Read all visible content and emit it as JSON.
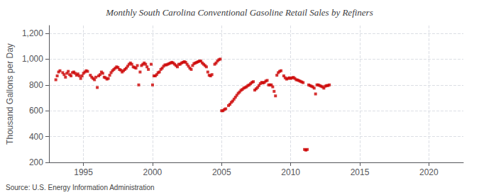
{
  "chart_data": {
    "type": "scatter",
    "title": "Monthly South Carolina Conventional Gasoline Retail Sales by Refiners",
    "ylabel": "Thousand Gallons per Day",
    "annotation": "Source: U.S. Energy Information Administration",
    "color": "#cc0000",
    "marker": "square",
    "grid": true,
    "xlim": [
      1992.5,
      2022.5
    ],
    "ylim": [
      200,
      1260
    ],
    "xticks": [
      1995,
      2000,
      2005,
      2010,
      2015,
      2020
    ],
    "yticks": [
      200,
      400,
      600,
      800,
      {
        "value": 1000,
        "label": "1,000"
      },
      {
        "value": 1200,
        "label": "1,200"
      }
    ],
    "x": [
      1993.0,
      1993.1,
      1993.2,
      1993.3,
      1993.5,
      1993.6,
      1993.7,
      1993.8,
      1993.9,
      1994.0,
      1994.1,
      1994.2,
      1994.3,
      1994.4,
      1994.5,
      1994.6,
      1994.7,
      1994.8,
      1994.9,
      1995.0,
      1995.1,
      1995.2,
      1995.3,
      1995.5,
      1995.6,
      1995.7,
      1995.8,
      1995.9,
      1996.0,
      1996.1,
      1996.2,
      1996.3,
      1996.4,
      1996.5,
      1996.6,
      1996.7,
      1996.8,
      1996.9,
      1997.0,
      1997.1,
      1997.2,
      1997.3,
      1997.4,
      1997.5,
      1997.6,
      1997.7,
      1997.8,
      1997.9,
      1998.0,
      1998.1,
      1998.2,
      1998.3,
      1998.4,
      1998.5,
      1998.6,
      1998.7,
      1998.8,
      1998.9,
      1999.0,
      1999.1,
      1999.2,
      1999.3,
      1999.4,
      1999.5,
      1999.6,
      1999.7,
      1999.9,
      2000.0,
      2000.1,
      2000.2,
      2000.3,
      2000.4,
      2000.5,
      2000.6,
      2000.7,
      2000.8,
      2000.9,
      2001.0,
      2001.1,
      2001.2,
      2001.3,
      2001.4,
      2001.5,
      2001.6,
      2001.7,
      2001.8,
      2001.9,
      2002.0,
      2002.1,
      2002.2,
      2002.3,
      2002.4,
      2002.5,
      2002.6,
      2002.7,
      2002.8,
      2002.9,
      2003.0,
      2003.1,
      2003.2,
      2003.3,
      2003.4,
      2003.5,
      2003.6,
      2003.7,
      2003.8,
      2003.9,
      2004.0,
      2004.1,
      2004.2,
      2004.3,
      2004.5,
      2004.6,
      2004.7,
      2004.8,
      2004.9,
      2005.0,
      2005.1,
      2005.2,
      2005.3,
      2005.5,
      2005.6,
      2005.7,
      2005.8,
      2005.9,
      2006.0,
      2006.1,
      2006.2,
      2006.3,
      2006.4,
      2006.5,
      2006.6,
      2006.7,
      2006.8,
      2006.9,
      2007.0,
      2007.1,
      2007.2,
      2007.3,
      2007.4,
      2007.5,
      2007.6,
      2007.7,
      2007.8,
      2007.9,
      2008.0,
      2008.1,
      2008.2,
      2008.3,
      2008.4,
      2008.5,
      2008.6,
      2008.7,
      2008.8,
      2008.9,
      2009.0,
      2009.1,
      2009.2,
      2009.3,
      2009.5,
      2009.6,
      2009.7,
      2009.8,
      2009.9,
      2010.0,
      2010.1,
      2010.2,
      2010.3,
      2010.4,
      2010.5,
      2010.6,
      2010.7,
      2010.8,
      2010.9,
      2011.0,
      2011.1,
      2011.2,
      2011.3,
      2011.4,
      2011.5,
      2011.6,
      2011.7,
      2011.8,
      2011.9,
      2012.0,
      2012.1,
      2012.2,
      2012.3,
      2012.4,
      2012.5,
      2012.6,
      2012.7,
      2012.8
    ],
    "values": [
      840,
      870,
      900,
      910,
      895,
      880,
      860,
      890,
      905,
      880,
      870,
      895,
      900,
      890,
      875,
      885,
      870,
      850,
      870,
      890,
      900,
      910,
      905,
      875,
      860,
      850,
      840,
      860,
      780,
      870,
      880,
      900,
      890,
      860,
      855,
      845,
      850,
      875,
      895,
      910,
      920,
      930,
      940,
      935,
      920,
      915,
      900,
      910,
      920,
      930,
      945,
      960,
      970,
      960,
      940,
      935,
      930,
      950,
      800,
      900,
      950,
      960,
      970,
      960,
      940,
      920,
      960,
      800,
      870,
      870,
      880,
      895,
      900,
      920,
      930,
      945,
      955,
      955,
      960,
      965,
      970,
      975,
      970,
      960,
      950,
      940,
      960,
      960,
      970,
      975,
      980,
      975,
      960,
      945,
      930,
      920,
      950,
      965,
      970,
      975,
      980,
      985,
      985,
      970,
      960,
      950,
      940,
      900,
      875,
      870,
      880,
      960,
      970,
      985,
      995,
      1000,
      600,
      600,
      610,
      615,
      640,
      650,
      665,
      675,
      690,
      705,
      720,
      735,
      745,
      758,
      765,
      775,
      780,
      785,
      795,
      800,
      810,
      820,
      825,
      760,
      770,
      780,
      795,
      810,
      820,
      815,
      820,
      830,
      835,
      800,
      800,
      800,
      785,
      750,
      715,
      875,
      895,
      905,
      910,
      870,
      855,
      845,
      850,
      855,
      850,
      855,
      858,
      850,
      840,
      838,
      833,
      828,
      823,
      818,
      300,
      295,
      300,
      800,
      795,
      790,
      785,
      775,
      730,
      800,
      800,
      795,
      790,
      785,
      775,
      790,
      795,
      795,
      800
    ]
  }
}
